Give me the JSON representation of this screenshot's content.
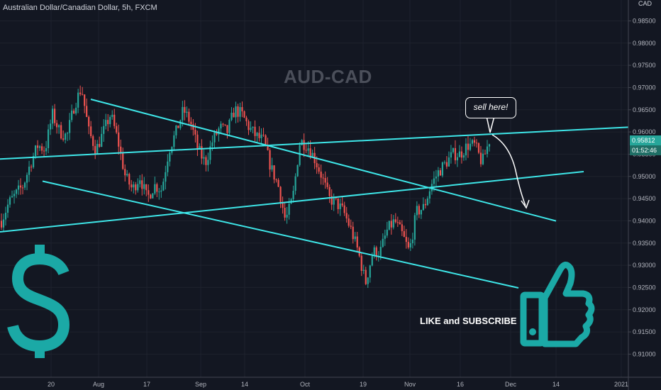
{
  "symbol": {
    "title": "Australian Dollar/Canadian Dollar, 5h, FXCM"
  },
  "watermark": "AUD-CAD",
  "currency": "CAD",
  "annotations": {
    "callout": "sell here!",
    "cta": "LIKE and SUBSCRIBE"
  },
  "icons": {
    "dollar": "dollar-sign-icon",
    "thumb": "thumbs-up-icon"
  },
  "colors": {
    "background": "#131722",
    "trendline": "#3ee6e8",
    "bull": "#26a69a",
    "bear": "#ef5350",
    "accent": "#1ba9a6",
    "price_tag": "#26a69a"
  },
  "chart_data": {
    "type": "candlestick",
    "title": "",
    "xlabel": "",
    "ylabel": "",
    "ylim": [
      0.9048,
      0.9897
    ],
    "x_ticks": [
      "20",
      "Aug",
      "17",
      "Sep",
      "14",
      "Oct",
      "19",
      "Nov",
      "16",
      "Dec",
      "14",
      "2021"
    ],
    "y_ticks": [
      "0.98500",
      "0.98000",
      "0.97500",
      "0.97000",
      "0.96500",
      "0.96000",
      "0.95500",
      "0.95000",
      "0.94500",
      "0.94000",
      "0.93500",
      "0.93000",
      "0.92500",
      "0.92000",
      "0.91500",
      "0.91000"
    ],
    "last_price": "0.95812",
    "countdown": "01:52:46",
    "price_path": [
      [
        0.94,
        0.944
      ],
      [
        0.946,
        0.948
      ],
      [
        0.953,
        0.957
      ],
      [
        0.956,
        0.964
      ],
      [
        0.96,
        0.959
      ],
      [
        0.966,
        0.97
      ],
      [
        0.96,
        0.956
      ],
      [
        0.96,
        0.964
      ],
      [
        0.958,
        0.95
      ],
      [
        0.947,
        0.95
      ],
      [
        0.945,
        0.948
      ],
      [
        0.947,
        0.956
      ],
      [
        0.96,
        0.965
      ],
      [
        0.962,
        0.956
      ],
      [
        0.953,
        0.958
      ],
      [
        0.961,
        0.96
      ],
      [
        0.965,
        0.964
      ],
      [
        0.961,
        0.959
      ],
      [
        0.958,
        0.952
      ],
      [
        0.948,
        0.94
      ],
      [
        0.945,
        0.958
      ],
      [
        0.957,
        0.954
      ],
      [
        0.95,
        0.945
      ],
      [
        0.944,
        0.942
      ],
      [
        0.938,
        0.933
      ],
      [
        0.926,
        0.933
      ],
      [
        0.933,
        0.938
      ],
      [
        0.94,
        0.937
      ],
      [
        0.933,
        0.942
      ],
      [
        0.943,
        0.948
      ],
      [
        0.951,
        0.953
      ],
      [
        0.955,
        0.955
      ],
      [
        0.957,
        0.957
      ],
      [
        0.953,
        0.9581
      ]
    ],
    "trendlines": [
      {
        "from": [
          "20",
          0.9697
        ],
        "to": [
          "14",
          0.9583
        ]
      },
      {
        "from": [
          "20",
          0.9545
        ],
        "to": [
          "2021",
          0.961
        ]
      },
      {
        "from": [
          "20",
          0.9485
        ],
        "to": [
          "Dec",
          0.9253
        ]
      },
      {
        "from": [
          "20",
          0.9387
        ],
        "to": [
          "14",
          0.9432
        ]
      }
    ]
  }
}
